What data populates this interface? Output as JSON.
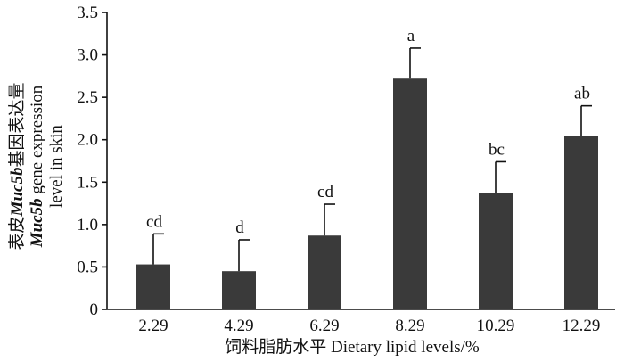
{
  "chart_data": {
    "type": "bar",
    "categories": [
      "2.29",
      "4.29",
      "6.29",
      "8.29",
      "10.29",
      "12.29"
    ],
    "values": [
      0.53,
      0.45,
      0.87,
      2.72,
      1.37,
      2.04
    ],
    "errors": [
      0.36,
      0.37,
      0.37,
      0.36,
      0.37,
      0.36
    ],
    "significance": [
      "cd",
      "d",
      "cd",
      "a",
      "bc",
      "ab"
    ],
    "ylim": [
      0,
      3.5
    ],
    "yticks": [
      "0",
      "0.5",
      "1.0",
      "1.5",
      "2.0",
      "2.5",
      "3.0",
      "3.5"
    ],
    "ytick_values": [
      0,
      0.5,
      1.0,
      1.5,
      2.0,
      2.5,
      3.0,
      3.5
    ],
    "xlabel": "饲料脂肪水平  Dietary lipid levels/%",
    "ylabel_lines": [
      {
        "prefix": "表皮",
        "italic": "Muc5b",
        "suffix": "基因表达量"
      },
      {
        "prefix": "",
        "italic": "Muc5b",
        "suffix": " gene expression"
      },
      {
        "prefix": "level in skin",
        "italic": "",
        "suffix": ""
      }
    ],
    "bar_color": "#3a3a3a",
    "grid": false,
    "legend": "none"
  }
}
